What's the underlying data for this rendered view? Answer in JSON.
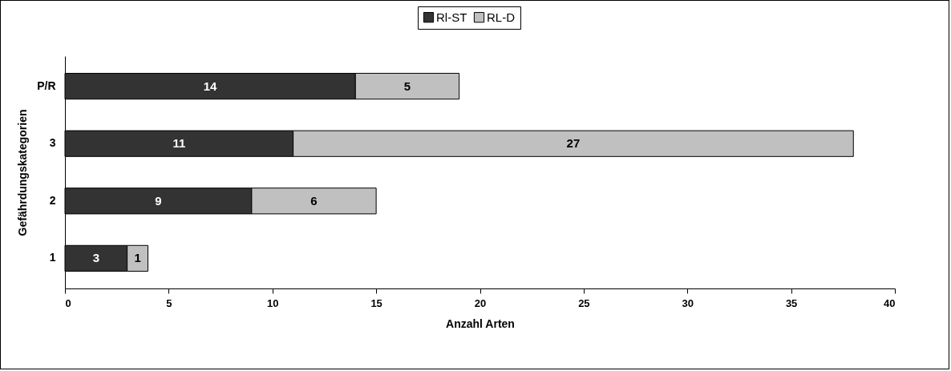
{
  "chart_data": {
    "type": "bar",
    "orientation": "horizontal",
    "stacked": true,
    "categories": [
      "P/R",
      "3",
      "2",
      "1"
    ],
    "series": [
      {
        "name": "Rl-ST",
        "color": "#333333",
        "values": [
          14,
          11,
          9,
          3
        ]
      },
      {
        "name": "RL-D",
        "color": "#c0c0c0",
        "values": [
          5,
          27,
          6,
          1
        ]
      }
    ],
    "xlabel": "Anzahl Arten",
    "ylabel": "Gefährdungskategorien",
    "xlim": [
      0,
      40
    ],
    "xticks": [
      0,
      5,
      10,
      15,
      20,
      25,
      30,
      35,
      40
    ],
    "data_labels": true,
    "legend": "top",
    "grid": false
  }
}
